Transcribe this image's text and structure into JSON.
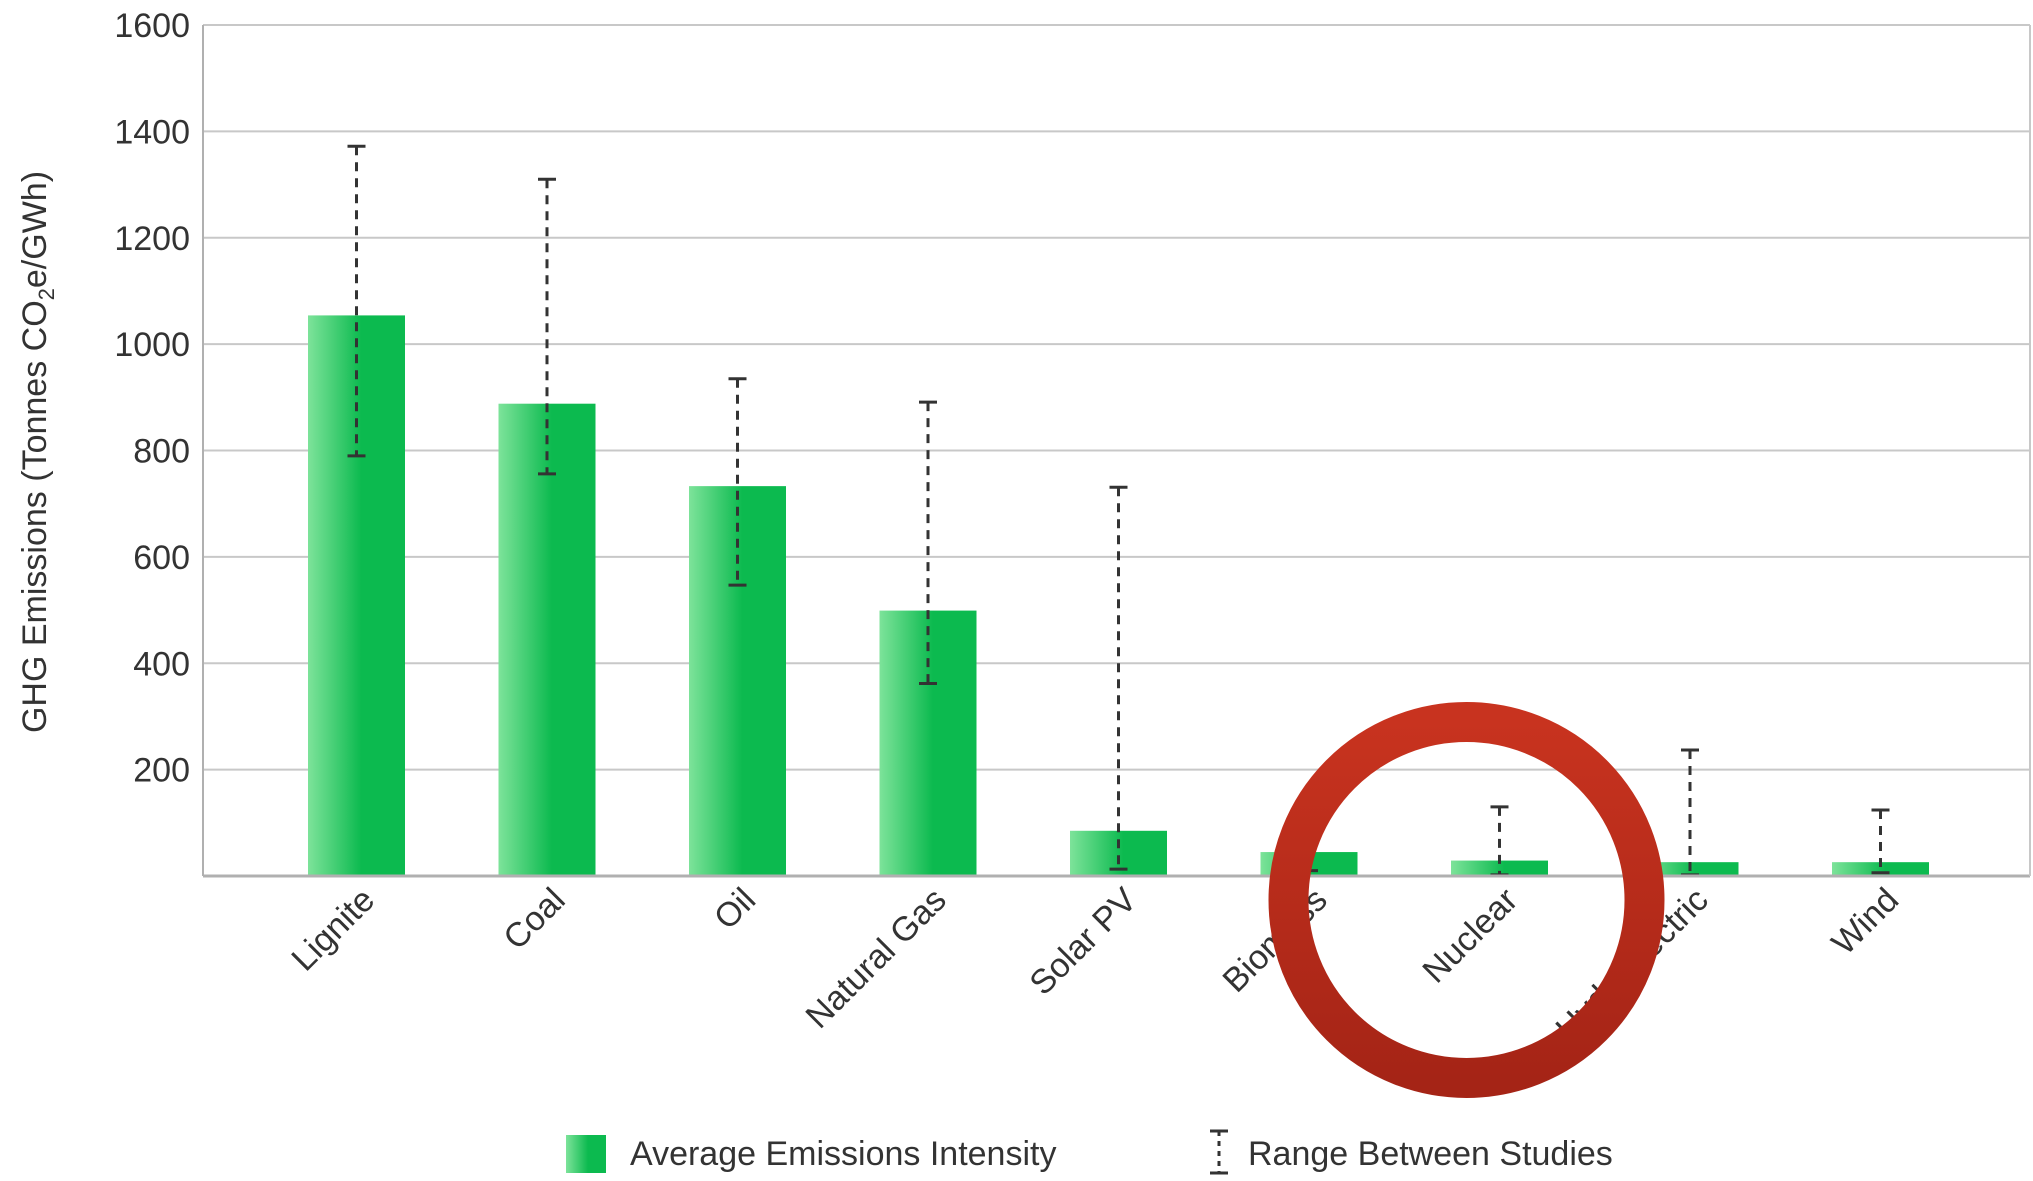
{
  "chart_data": {
    "type": "bar",
    "ylabel": "GHG Emissions (Tonnes CO",
    "ylabel_sub": "2",
    "ylabel_tail": "e/GWh)",
    "xlabel": "",
    "ylim": [
      0,
      1600
    ],
    "yticks": [
      200,
      400,
      600,
      800,
      1000,
      1200,
      1400,
      1600
    ],
    "grid": true,
    "categories": [
      "Lignite",
      "Coal",
      "Oil",
      "Natural Gas",
      "Solar PV",
      "Biomass",
      "Nuclear",
      "Hydroelectric",
      "Wind"
    ],
    "series": [
      {
        "name": "Average Emissions Intensity",
        "values": [
          1054,
          888,
          733,
          499,
          85,
          45,
          29,
          26,
          26
        ]
      }
    ],
    "ranges": [
      {
        "low": 790,
        "high": 1372
      },
      {
        "low": 756,
        "high": 1310
      },
      {
        "low": 547,
        "high": 935
      },
      {
        "low": 362,
        "high": 891
      },
      {
        "low": 13,
        "high": 731
      },
      {
        "low": 10,
        "high": 101
      },
      {
        "low": 2,
        "high": 130
      },
      {
        "low": 2,
        "high": 237
      },
      {
        "low": 6,
        "high": 124
      }
    ],
    "legend": {
      "position": "bottom",
      "bar_label": "Average Emissions Intensity",
      "range_label": "Range Between Studies"
    },
    "colors": {
      "bar_light": "#7de39a",
      "bar_dark": "#0cba4f",
      "grid": "#c8c8c8",
      "annotation_ring": "#b02a1a"
    },
    "annotation": {
      "type": "circle",
      "target": "Nuclear"
    }
  }
}
